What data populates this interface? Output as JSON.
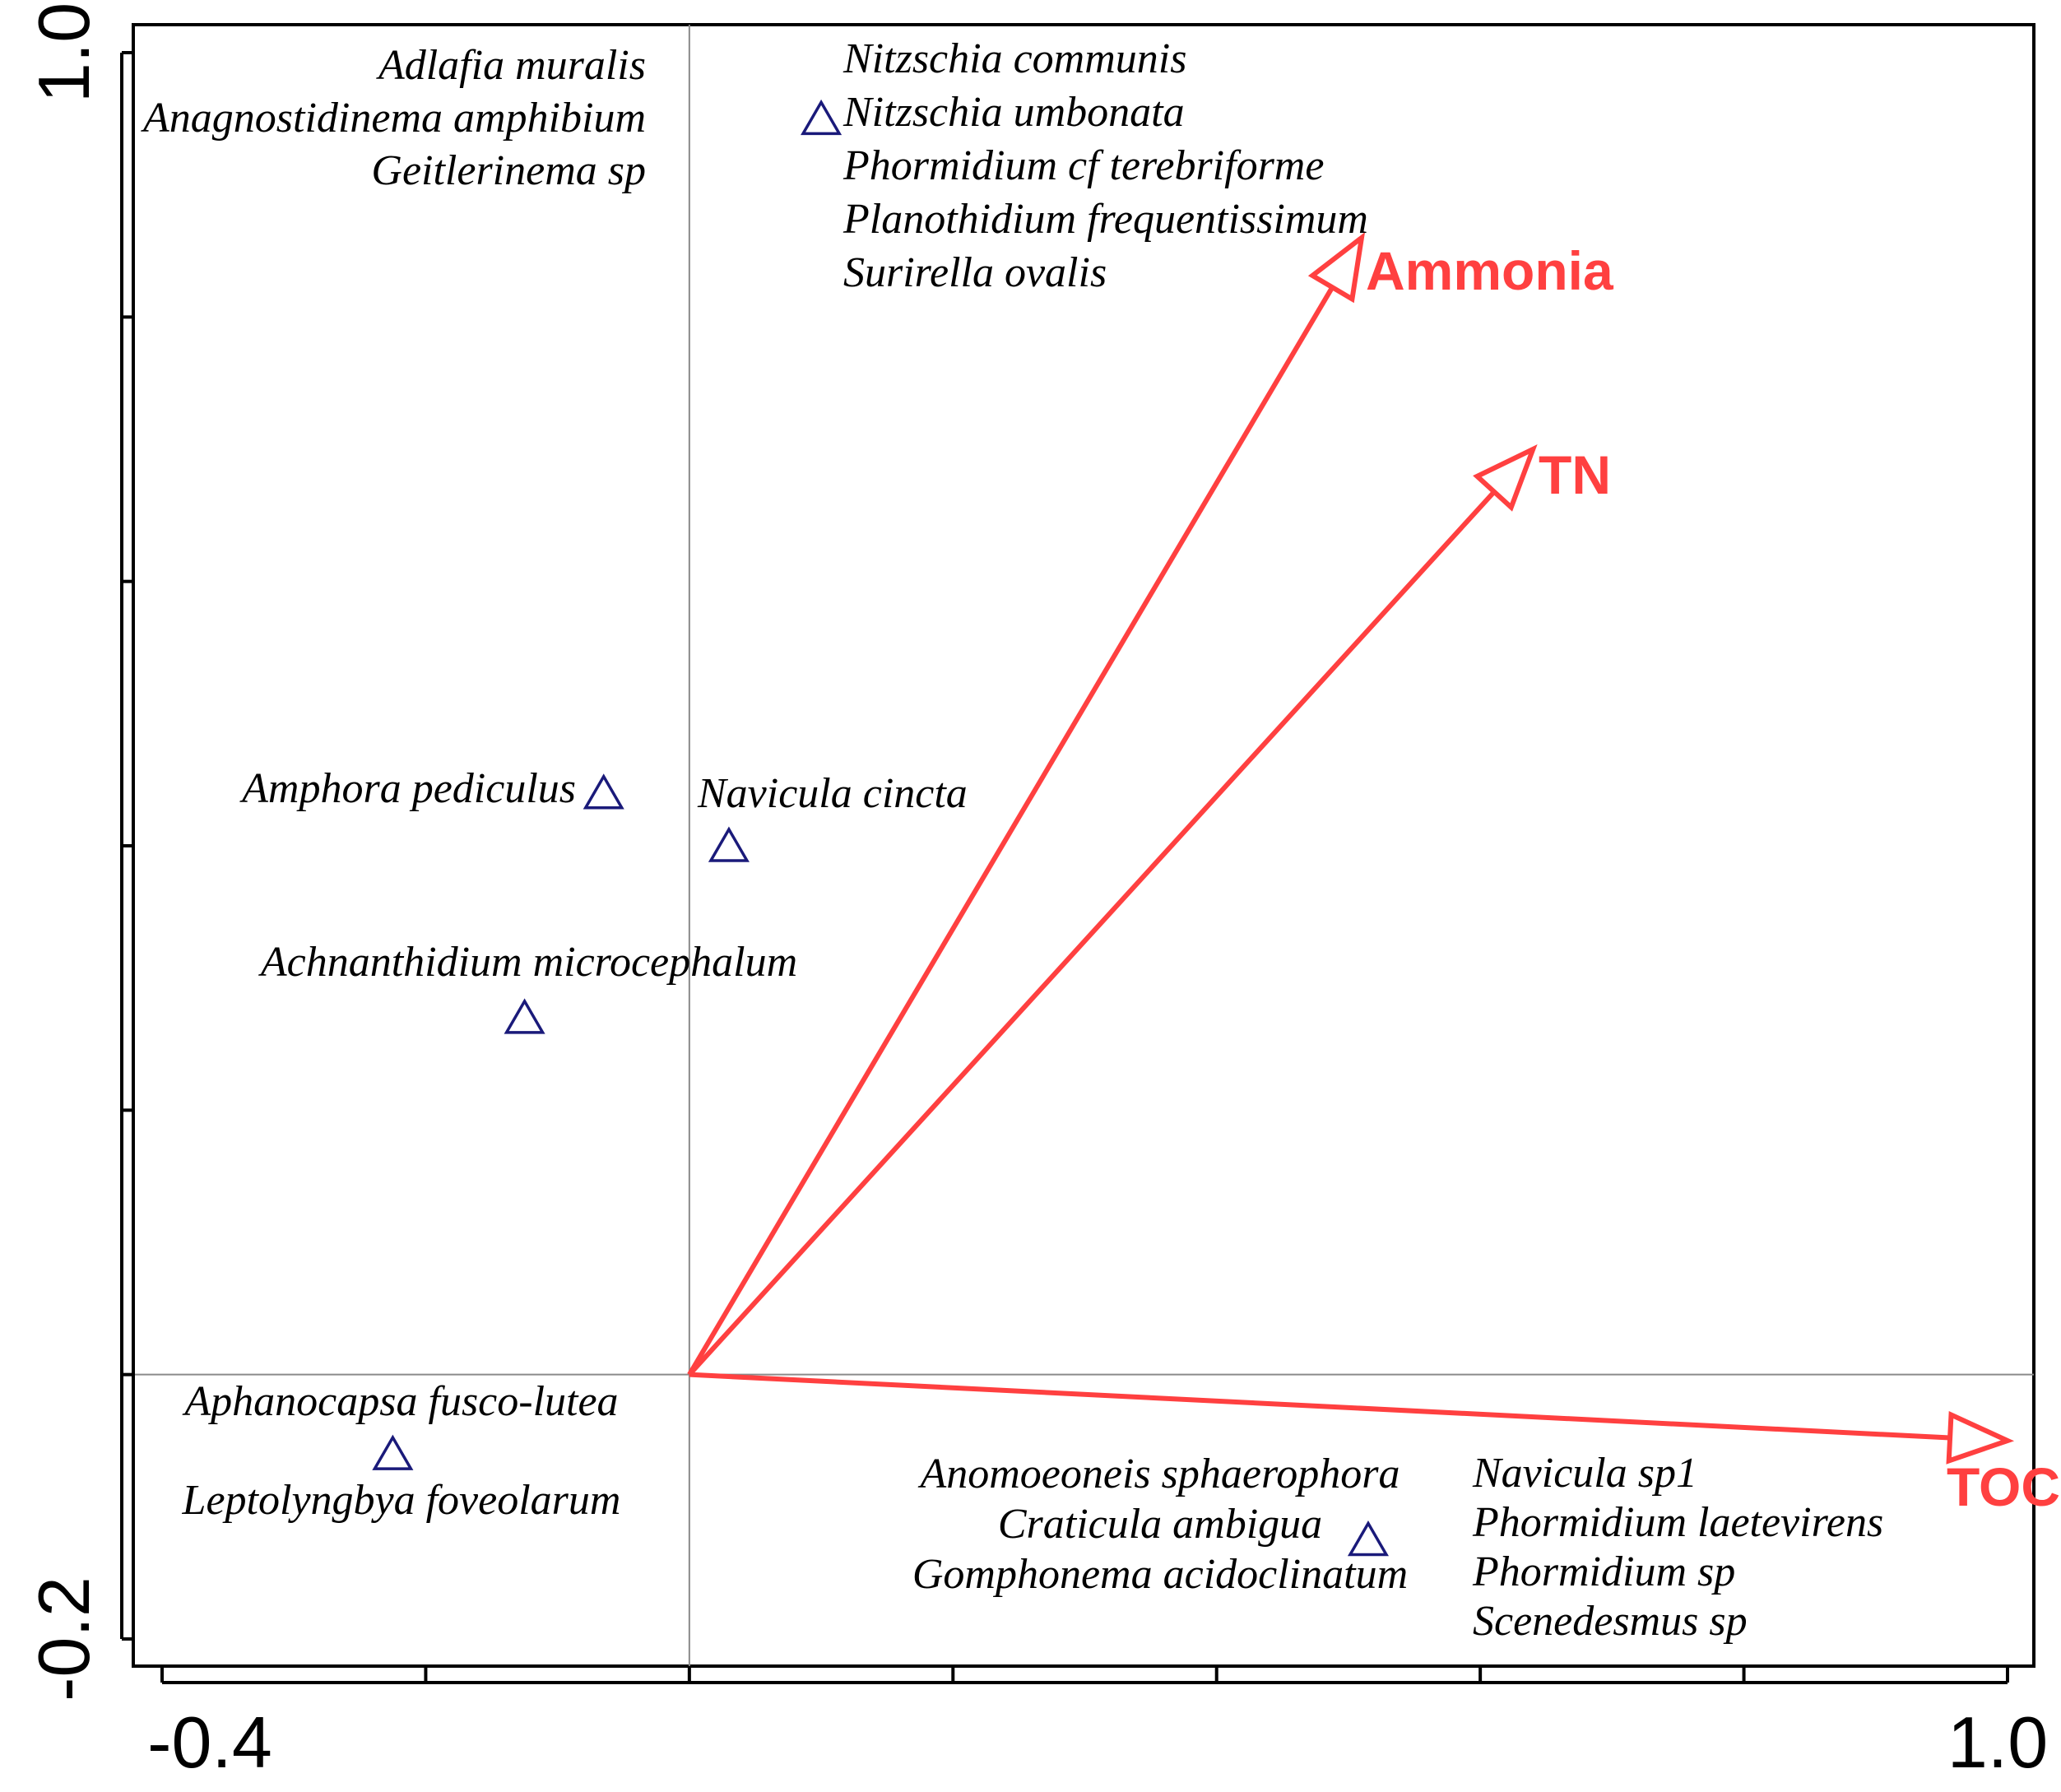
{
  "chart_data": {
    "type": "scatter",
    "title": "",
    "xlabel": "",
    "ylabel": "",
    "xlim": [
      -0.4,
      1.0
    ],
    "ylim": [
      -0.2,
      1.0
    ],
    "x_tick_labels": [
      "-0.4",
      "1.0"
    ],
    "y_tick_labels": [
      "1.0",
      "-0.2"
    ],
    "grid": false,
    "origin_lines": true,
    "colors": {
      "species": "#1a1a7a",
      "arrows": "#ff4040",
      "axes": "#000000"
    },
    "species": [
      {
        "x": 0.1,
        "y": 0.95,
        "labels": [
          "Nitzschia communis",
          "Nitzschia umbonata",
          "Phormidium cf terebriforme",
          "Planothidium frequentissimum",
          "Surirella ovalis"
        ]
      },
      {
        "x": 0.1,
        "y": 0.95,
        "labels": [
          "Adlafia muralis",
          "Anagnostidinema amphibium",
          "Geitlerinema sp"
        ]
      },
      {
        "x": -0.065,
        "y": 0.44,
        "labels": [
          "Amphora pediculus"
        ]
      },
      {
        "x": 0.03,
        "y": 0.4,
        "labels": [
          "Navicula cincta"
        ]
      },
      {
        "x": -0.125,
        "y": 0.27,
        "labels": [
          "Achnanthidium microcephalum"
        ]
      },
      {
        "x": -0.225,
        "y": -0.06,
        "labels": [
          "Aphanocapsa fusco-lutea",
          "Leptolyngbya foveolarum"
        ]
      },
      {
        "x": 0.515,
        "y": -0.125,
        "labels": [
          "Anomoeoneis sphaerophora",
          "Craticula ambigua",
          "Gomphonema acidoclinatum"
        ]
      },
      {
        "x": 0.515,
        "y": -0.125,
        "labels": [
          "Navicula sp1",
          "Phormidium laetevirens",
          "Phormidium sp",
          "Scenedesmus sp"
        ]
      }
    ],
    "env_vectors": [
      {
        "name": "Ammonia",
        "x": 0.51,
        "y": 0.86
      },
      {
        "name": "TN",
        "x": 0.64,
        "y": 0.7
      },
      {
        "name": "TOC",
        "x": 1.0,
        "y": -0.05
      }
    ]
  }
}
